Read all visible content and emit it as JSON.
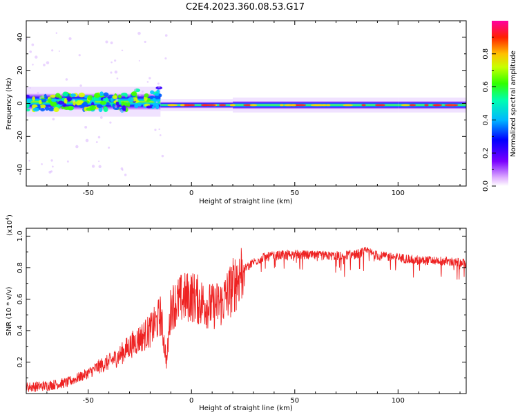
{
  "title": "C2E4.2023.360.08.53.G17",
  "colors": {
    "snr_line": "#ee2222",
    "axis": "#000000",
    "background": "#ffffff"
  },
  "chart_data": [
    {
      "type": "heatmap",
      "name": "spectrogram",
      "xlabel": "Height of straight line (km)",
      "ylabel": "Frequency (Hz)",
      "xlim": [
        -80,
        133
      ],
      "ylim": [
        -50,
        50
      ],
      "xticks": [
        -50,
        0,
        50,
        100
      ],
      "xtick_labels": [
        "-50",
        "0",
        "50",
        "100"
      ],
      "yticks": [
        -40,
        -20,
        0,
        20,
        40
      ],
      "ytick_labels": [
        "-40",
        "-20",
        "0",
        "20",
        "40"
      ],
      "colorbar": {
        "label": "Normalized spectral amplitude",
        "range": [
          0,
          1
        ],
        "ticks": [
          0.0,
          0.2,
          0.4,
          0.6,
          0.8
        ],
        "tick_labels": [
          "0.0",
          "0.2",
          "0.4",
          "0.6",
          "0.8"
        ],
        "colormap": "rainbow (white-violet-blue-cyan-green-yellow-red-magenta)"
      },
      "band": {
        "description": "Main spectral band centered near 0 Hz; scattered and wider (about ±6 Hz) below -15 km, narrow (about ±2 Hz) and continuous above -15 km",
        "regions": [
          {
            "x_range": [
              -80,
              -15
            ],
            "center_hz": 1,
            "half_width_hz": 5,
            "amplitude": 0.45
          },
          {
            "x_range": [
              -15,
              20
            ],
            "center_hz": -1,
            "half_width_hz": 2,
            "amplitude": 0.75
          },
          {
            "x_range": [
              20,
              100
            ],
            "center_hz": -1,
            "half_width_hz": 2.5,
            "amplitude": 0.6
          },
          {
            "x_range": [
              100,
              133
            ],
            "center_hz": -1,
            "half_width_hz": 2.5,
            "amplitude": 0.5
          }
        ]
      }
    },
    {
      "type": "line",
      "name": "snr",
      "xlabel": "Height of straight line (km)",
      "ylabel": "SNR (10 * v/v)",
      "scale_label": "(x10",
      "scale_exponent": "4",
      "xlim": [
        -80,
        133
      ],
      "ylim": [
        0,
        1.05
      ],
      "xticks": [
        -50,
        0,
        50,
        100
      ],
      "xtick_labels": [
        "-50",
        "0",
        "50",
        "100"
      ],
      "yticks": [
        0.2,
        0.4,
        0.6,
        0.8,
        1.0
      ],
      "ytick_labels": [
        "0.2",
        "0.4",
        "0.6",
        "0.8",
        "1.0"
      ],
      "series": [
        {
          "name": "SNR",
          "x": [
            -80,
            -70,
            -60,
            -55,
            -50,
            -45,
            -40,
            -35,
            -30,
            -25,
            -20,
            -17,
            -15,
            -12,
            -10,
            -5,
            0,
            5,
            10,
            15,
            20,
            25,
            30,
            35,
            40,
            50,
            60,
            70,
            80,
            85,
            90,
            100,
            110,
            120,
            133
          ],
          "y": [
            0.04,
            0.05,
            0.07,
            0.1,
            0.13,
            0.17,
            0.2,
            0.24,
            0.3,
            0.35,
            0.4,
            0.45,
            0.5,
            0.2,
            0.55,
            0.6,
            0.62,
            0.58,
            0.55,
            0.58,
            0.68,
            0.8,
            0.85,
            0.88,
            0.89,
            0.9,
            0.89,
            0.89,
            0.9,
            0.92,
            0.89,
            0.88,
            0.86,
            0.86,
            0.84
          ]
        }
      ]
    }
  ]
}
